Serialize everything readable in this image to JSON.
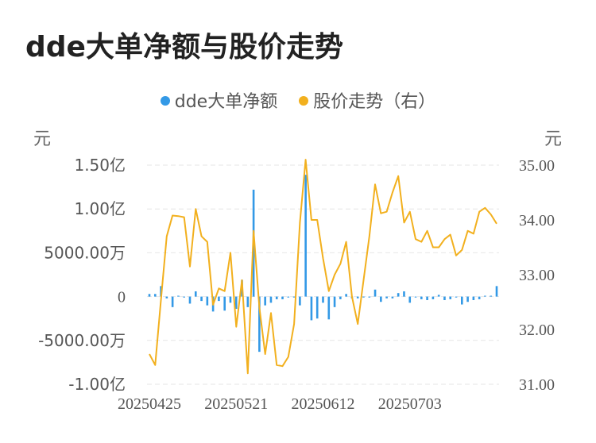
{
  "title": "dde大单净额与股价走势",
  "legend": [
    {
      "name": "dde大单净额",
      "color": "#3399e6"
    },
    {
      "name": "股价走势（右）",
      "color": "#f2b01e"
    }
  ],
  "left_unit": "元",
  "right_unit": "元",
  "chart_data": {
    "type": "bar+line",
    "x_tick_labels": [
      "20250425",
      "20250521",
      "20250612",
      "20250703"
    ],
    "x_tick_indices": [
      0,
      15,
      30,
      45
    ],
    "y_left": {
      "min": -100000000,
      "max": 150000000,
      "ticks": [
        {
          "value": 150000000,
          "label": "1.50亿"
        },
        {
          "value": 100000000,
          "label": "1.00亿"
        },
        {
          "value": 50000000,
          "label": "5000.00万"
        },
        {
          "value": 0,
          "label": "0"
        },
        {
          "value": -50000000,
          "label": "-5000.00万"
        },
        {
          "value": -100000000,
          "label": "-1.00亿"
        }
      ]
    },
    "y_right": {
      "min": 31.0,
      "max": 35.0,
      "ticks": [
        {
          "value": 35.0,
          "label": "35.00"
        },
        {
          "value": 34.0,
          "label": "34.00"
        },
        {
          "value": 33.0,
          "label": "33.00"
        },
        {
          "value": 32.0,
          "label": "32.00"
        },
        {
          "value": 31.0,
          "label": "31.00"
        }
      ]
    },
    "grid": true,
    "series": [
      {
        "name": "dde大单净额",
        "type": "bar",
        "axis": "left",
        "values": [
          3000000,
          3000000,
          12000000,
          -2000000,
          -12000000,
          1000000,
          -1000000,
          -8000000,
          6000000,
          -5000000,
          -10000000,
          -17000000,
          -5000000,
          -16000000,
          -7000000,
          -14000000,
          19000000,
          -12000000,
          122000000,
          -63000000,
          -10000000,
          -7000000,
          -3000000,
          -3000000,
          -1000000,
          -1000000,
          -10000000,
          139000000,
          -27000000,
          -25000000,
          -7000000,
          -26000000,
          -12000000,
          -3000000,
          3000000,
          -2000000,
          -2000000,
          -1000000,
          -1000000,
          8000000,
          -6000000,
          -2000000,
          -2000000,
          4000000,
          6000000,
          -7000000,
          -1000000,
          -3000000,
          -4000000,
          -3000000,
          2000000,
          -4000000,
          -3000000,
          -1000000,
          -9000000,
          -6000000,
          -4000000,
          -3000000,
          1000000,
          1000000,
          12000000
        ]
      },
      {
        "name": "股价走势（右）",
        "type": "line",
        "axis": "right",
        "values": [
          31.55,
          31.35,
          32.55,
          33.7,
          34.08,
          34.07,
          34.05,
          33.15,
          34.2,
          33.7,
          33.6,
          32.45,
          32.75,
          32.7,
          33.4,
          32.05,
          32.9,
          31.2,
          33.8,
          32.4,
          31.55,
          32.3,
          31.35,
          31.33,
          31.5,
          32.1,
          33.95,
          35.1,
          34.0,
          34.0,
          33.3,
          32.7,
          33.0,
          33.2,
          33.6,
          32.6,
          32.1,
          32.9,
          33.7,
          34.65,
          34.12,
          34.15,
          34.5,
          34.8,
          33.95,
          34.15,
          33.65,
          33.6,
          33.8,
          33.5,
          33.5,
          33.65,
          33.73,
          33.35,
          33.45,
          33.8,
          33.75,
          34.15,
          34.22,
          34.1,
          33.93
        ]
      }
    ]
  }
}
